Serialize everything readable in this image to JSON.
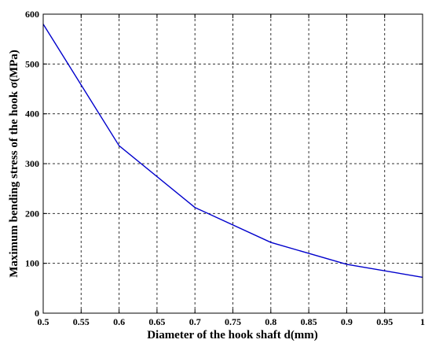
{
  "chart_data": {
    "type": "line",
    "xlabel": "Diameter of the hook shaft d(mm)",
    "ylabel": "Maximum bending stress of the hook σ(MPa)",
    "xlim": [
      0.5,
      1.0
    ],
    "ylim": [
      0,
      600
    ],
    "xticks": [
      "0.5",
      "0.55",
      "0.6",
      "0.65",
      "0.7",
      "0.75",
      "0.8",
      "0.85",
      "0.9",
      "0.95",
      "1"
    ],
    "yticks": [
      "0",
      "100",
      "200",
      "300",
      "400",
      "500",
      "600"
    ],
    "grid": true,
    "series": [
      {
        "color": "#0000cc",
        "x": [
          0.5,
          0.6,
          0.7,
          0.8,
          0.9,
          1.0
        ],
        "y": [
          580,
          336,
          212,
          142,
          98,
          72
        ]
      }
    ]
  }
}
